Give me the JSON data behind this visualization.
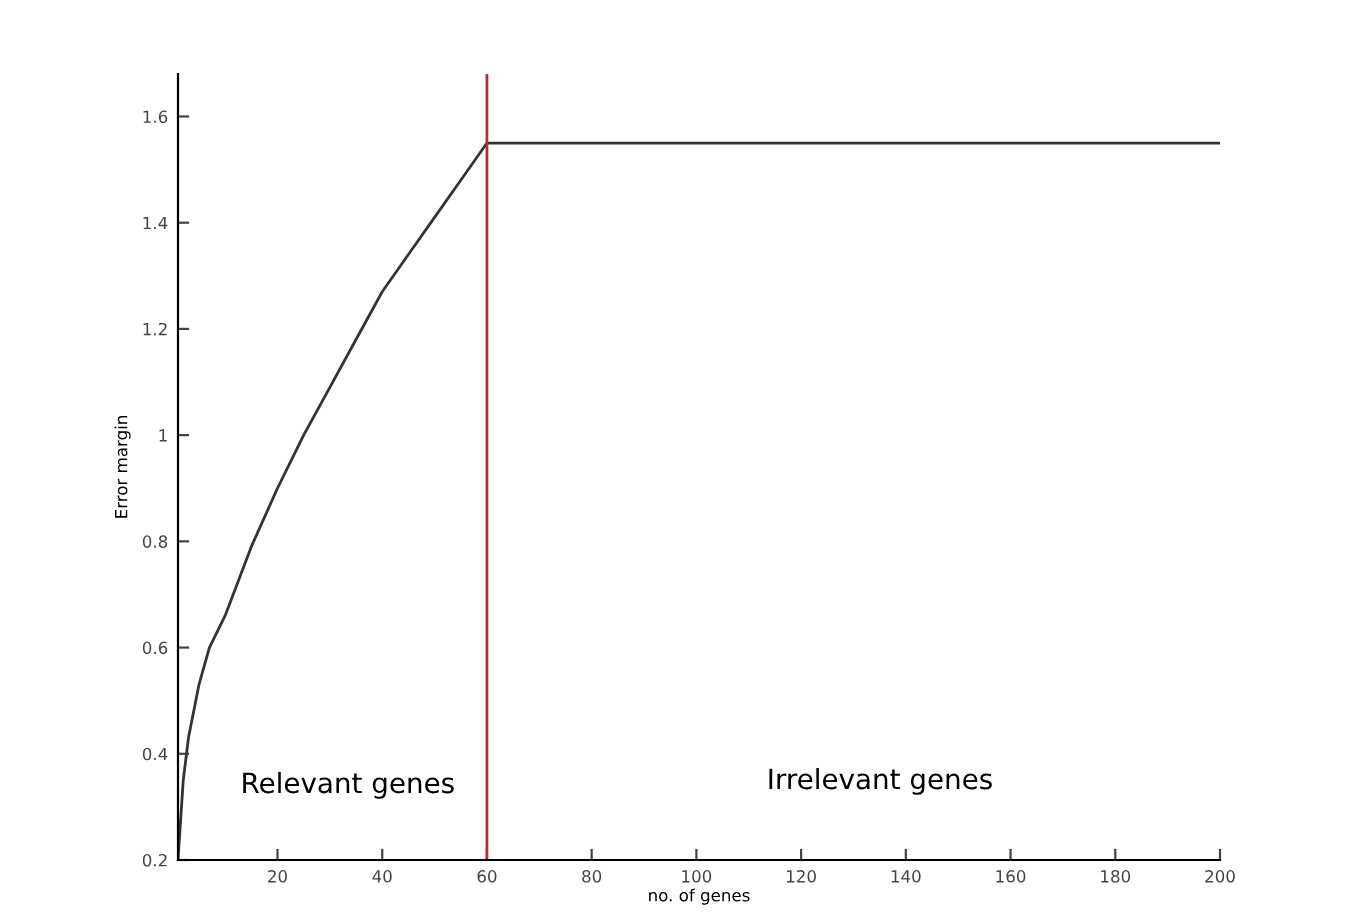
{
  "chart_data": {
    "type": "line",
    "xlabel": "no. of genes",
    "ylabel": "Error margin",
    "x": [
      1,
      2,
      3,
      5,
      7,
      10,
      15,
      20,
      25,
      30,
      35,
      40,
      45,
      50,
      55,
      60,
      80,
      100,
      120,
      140,
      160,
      180,
      200
    ],
    "series": [
      {
        "color": "#333333",
        "values": [
          0.2,
          0.35,
          0.43,
          0.53,
          0.6,
          0.66,
          0.79,
          0.9,
          1.0,
          1.09,
          1.18,
          1.27,
          1.34,
          1.41,
          1.48,
          1.55,
          1.55,
          1.55,
          1.55,
          1.55,
          1.55,
          1.55,
          1.55
        ]
      }
    ],
    "xlim": [
      1,
      200
    ],
    "ylim": [
      0.2,
      1.68
    ],
    "xticks": [
      20,
      40,
      60,
      80,
      100,
      120,
      140,
      160,
      180,
      200
    ],
    "yticks": [
      0.2,
      0.4,
      0.6,
      0.8,
      1,
      1.2,
      1.4,
      1.6
    ],
    "ref_lines": [
      {
        "axis": "x",
        "value": 60,
        "color": "#b03030"
      }
    ],
    "annotations": [
      "Relevant genes",
      "Irrelevant genes"
    ],
    "grid": false,
    "legend": false
  }
}
